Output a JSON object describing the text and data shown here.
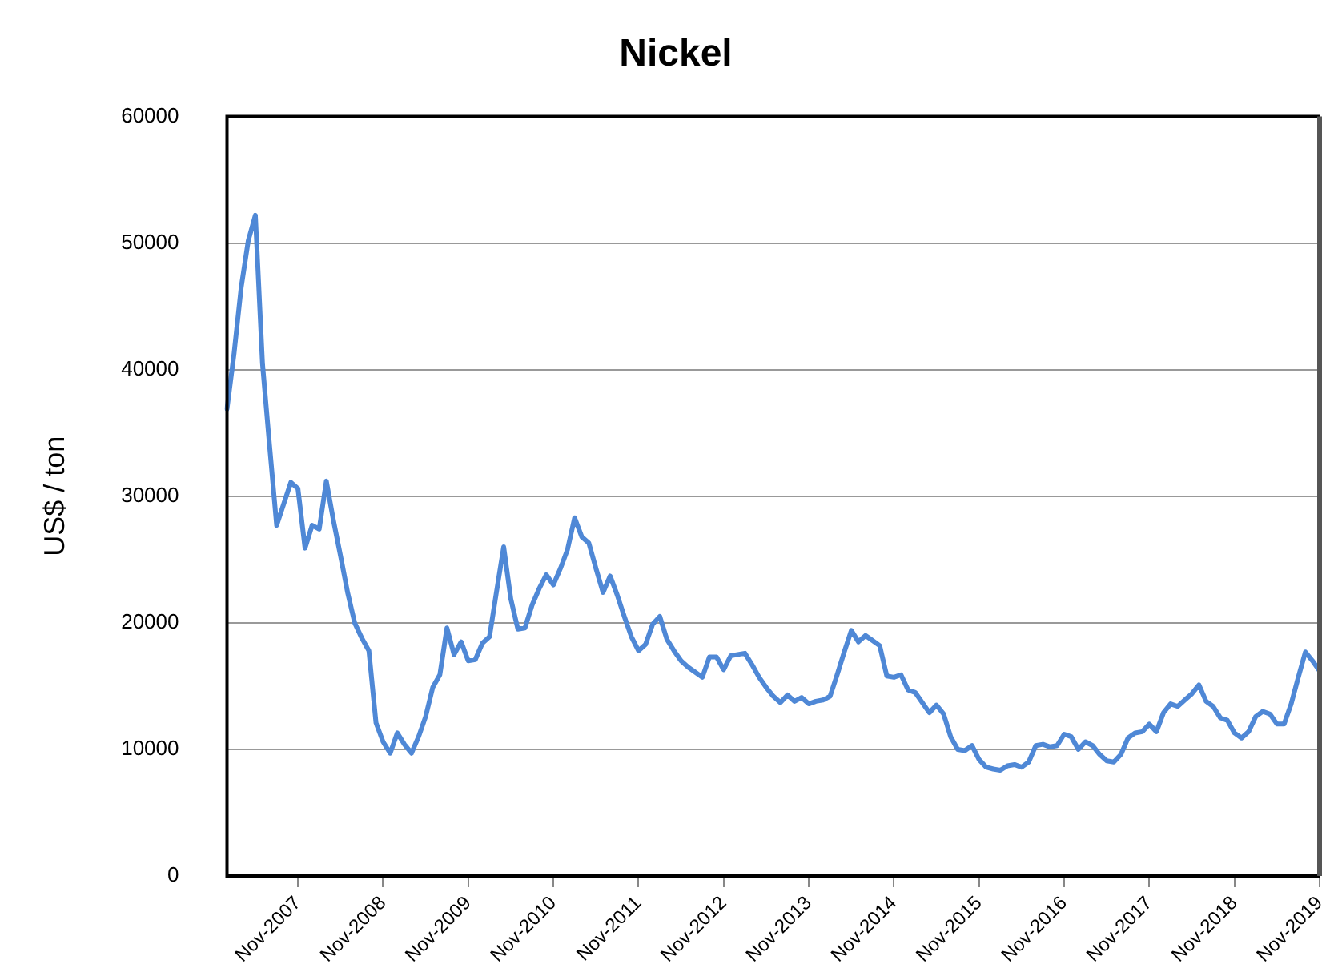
{
  "chart_data": {
    "type": "line",
    "title": "Nickel",
    "ylabel": "US$ / ton",
    "categories": [
      null,
      null,
      null,
      null,
      null,
      null,
      null,
      null,
      null,
      null,
      "Nov-2007",
      null,
      null,
      null,
      null,
      null,
      null,
      null,
      null,
      null,
      null,
      null,
      "Nov-2008",
      null,
      null,
      null,
      null,
      null,
      null,
      null,
      null,
      null,
      null,
      null,
      "Nov-2009",
      null,
      null,
      null,
      null,
      null,
      null,
      null,
      null,
      null,
      null,
      null,
      "Nov-2010",
      null,
      null,
      null,
      null,
      null,
      null,
      null,
      null,
      null,
      null,
      null,
      "Nov-2011",
      null,
      null,
      null,
      null,
      null,
      null,
      null,
      null,
      null,
      null,
      null,
      "Nov-2012",
      null,
      null,
      null,
      null,
      null,
      null,
      null,
      null,
      null,
      null,
      null,
      "Nov-2013",
      null,
      null,
      null,
      null,
      null,
      null,
      null,
      null,
      null,
      null,
      null,
      "Nov-2014",
      null,
      null,
      null,
      null,
      null,
      null,
      null,
      null,
      null,
      null,
      null,
      "Nov-2015",
      null,
      null,
      null,
      null,
      null,
      null,
      null,
      null,
      null,
      null,
      null,
      "Nov-2016",
      null,
      null,
      null,
      null,
      null,
      null,
      null,
      null,
      null,
      null,
      null,
      "Nov-2017",
      null,
      null,
      null,
      null,
      null,
      null,
      null,
      null,
      null,
      null,
      null,
      "Nov-2018",
      null,
      null,
      null,
      null,
      null,
      null,
      null,
      null,
      null,
      null,
      null,
      "Nov-2019"
    ],
    "series": [
      {
        "color": "#4f88d6",
        "values": [
          36900,
          41300,
          46500,
          50200,
          52200,
          40500,
          34000,
          27700,
          29400,
          31100,
          30600,
          25900,
          27700,
          27400,
          31200,
          28100,
          25300,
          22400,
          20000,
          18800,
          17800,
          12100,
          10600,
          9700,
          11300,
          10400,
          9700,
          11000,
          12600,
          14900,
          15900,
          19600,
          17500,
          18500,
          17000,
          17100,
          18400,
          18900,
          22500,
          26000,
          21900,
          19500,
          19600,
          21400,
          22700,
          23800,
          23000,
          24300,
          25800,
          28300,
          26800,
          26300,
          24300,
          22400,
          23700,
          22200,
          20500,
          18900,
          17800,
          18300,
          19900,
          20500,
          18700,
          17800,
          17000,
          16500,
          16100,
          15700,
          17300,
          17300,
          16300,
          17400,
          17500,
          17600,
          16700,
          15700,
          14900,
          14200,
          13700,
          14300,
          13800,
          14100,
          13600,
          13800,
          13900,
          14200,
          15900,
          17700,
          19400,
          18500,
          19000,
          18600,
          18200,
          15800,
          15700,
          15900,
          14700,
          14500,
          13700,
          12900,
          13500,
          12800,
          11000,
          10000,
          9900,
          10300,
          9200,
          8600,
          8450,
          8350,
          8700,
          8800,
          8600,
          9000,
          10300,
          10400,
          10200,
          10300,
          11200,
          11000,
          10000,
          10600,
          10300,
          9600,
          9100,
          9000,
          9600,
          10900,
          11300,
          11400,
          12000,
          11400,
          12900,
          13600,
          13400,
          13900,
          14400,
          15100,
          13800,
          13400,
          12500,
          12300,
          11300,
          10900,
          11400,
          12600,
          13000,
          12800,
          12000,
          12000,
          13600,
          15700,
          17700,
          17000,
          16200
        ]
      }
    ],
    "ylim": [
      0,
      60000
    ],
    "yticks": [
      0,
      10000,
      20000,
      30000,
      40000,
      50000,
      60000
    ],
    "grid": "y",
    "legend": false,
    "marker": "none",
    "line_style": "solid"
  }
}
